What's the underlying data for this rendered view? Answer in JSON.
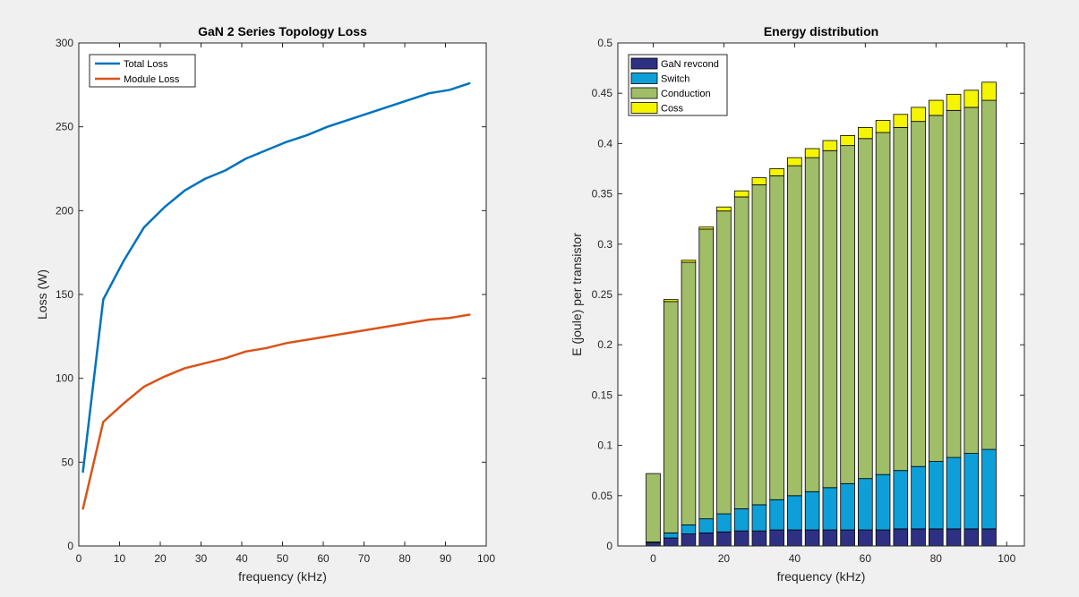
{
  "chart_data": [
    {
      "type": "line",
      "title": "GaN 2 Series Topology Loss",
      "xlabel": "frequency (kHz)",
      "ylabel": "Loss (W)",
      "xlim": [
        0,
        100
      ],
      "ylim": [
        0,
        300
      ],
      "xticks": [
        0,
        10,
        20,
        30,
        40,
        50,
        60,
        70,
        80,
        90,
        100
      ],
      "yticks": [
        0,
        50,
        100,
        150,
        200,
        250,
        300
      ],
      "grid": false,
      "legend": "top-left",
      "x": [
        1,
        6,
        11,
        16,
        21,
        26,
        31,
        36,
        41,
        46,
        51,
        56,
        61,
        66,
        71,
        76,
        81,
        86,
        91,
        96
      ],
      "series": [
        {
          "name": "Total Loss",
          "color": "#0072bd",
          "values": [
            44,
            147,
            170,
            190,
            202,
            212,
            219,
            224,
            231,
            236,
            241,
            245,
            250,
            254,
            258,
            262,
            266,
            270,
            272,
            276
          ]
        },
        {
          "name": "Module Loss",
          "color": "#d95319",
          "values": [
            22,
            74,
            85,
            95,
            101,
            106,
            109,
            112,
            116,
            118,
            121,
            123,
            125,
            127,
            129,
            131,
            133,
            135,
            136,
            138
          ]
        }
      ]
    },
    {
      "type": "bar",
      "stacked": true,
      "title": "Energy distribution",
      "xlabel": "frequency (kHz)",
      "ylabel": "E (joule) per transistor",
      "xlim": [
        -10,
        105
      ],
      "ylim": [
        0,
        0.5
      ],
      "xticks": [
        0,
        20,
        40,
        60,
        80,
        100
      ],
      "yticks": [
        0,
        0.05,
        0.1,
        0.15,
        0.2,
        0.25,
        0.3,
        0.35,
        0.4,
        0.45,
        0.5
      ],
      "grid": false,
      "legend": "top-left",
      "x": [
        0,
        5,
        10,
        15,
        20,
        25,
        30,
        35,
        40,
        45,
        50,
        55,
        60,
        65,
        70,
        75,
        80,
        85,
        90,
        95
      ],
      "series": [
        {
          "name": "GaN revcond",
          "color": "#2e3183",
          "values": [
            0.003,
            0.008,
            0.012,
            0.013,
            0.014,
            0.015,
            0.015,
            0.016,
            0.016,
            0.016,
            0.016,
            0.016,
            0.016,
            0.016,
            0.017,
            0.017,
            0.017,
            0.017,
            0.017,
            0.017
          ]
        },
        {
          "name": "Switch",
          "color": "#0e9fd8",
          "values": [
            0.001,
            0.005,
            0.009,
            0.014,
            0.018,
            0.022,
            0.026,
            0.03,
            0.034,
            0.038,
            0.042,
            0.046,
            0.051,
            0.055,
            0.058,
            0.062,
            0.067,
            0.071,
            0.075,
            0.079
          ]
        },
        {
          "name": "Conduction",
          "color": "#a0bd68",
          "values": [
            0.068,
            0.23,
            0.261,
            0.288,
            0.301,
            0.31,
            0.318,
            0.322,
            0.328,
            0.332,
            0.335,
            0.336,
            0.338,
            0.34,
            0.341,
            0.343,
            0.344,
            0.345,
            0.344,
            0.347
          ]
        },
        {
          "name": "Coss",
          "color": "#f5f500",
          "values": [
            0.0,
            0.002,
            0.002,
            0.002,
            0.004,
            0.006,
            0.007,
            0.007,
            0.008,
            0.009,
            0.01,
            0.01,
            0.011,
            0.012,
            0.013,
            0.014,
            0.015,
            0.016,
            0.017,
            0.018
          ]
        }
      ]
    }
  ]
}
